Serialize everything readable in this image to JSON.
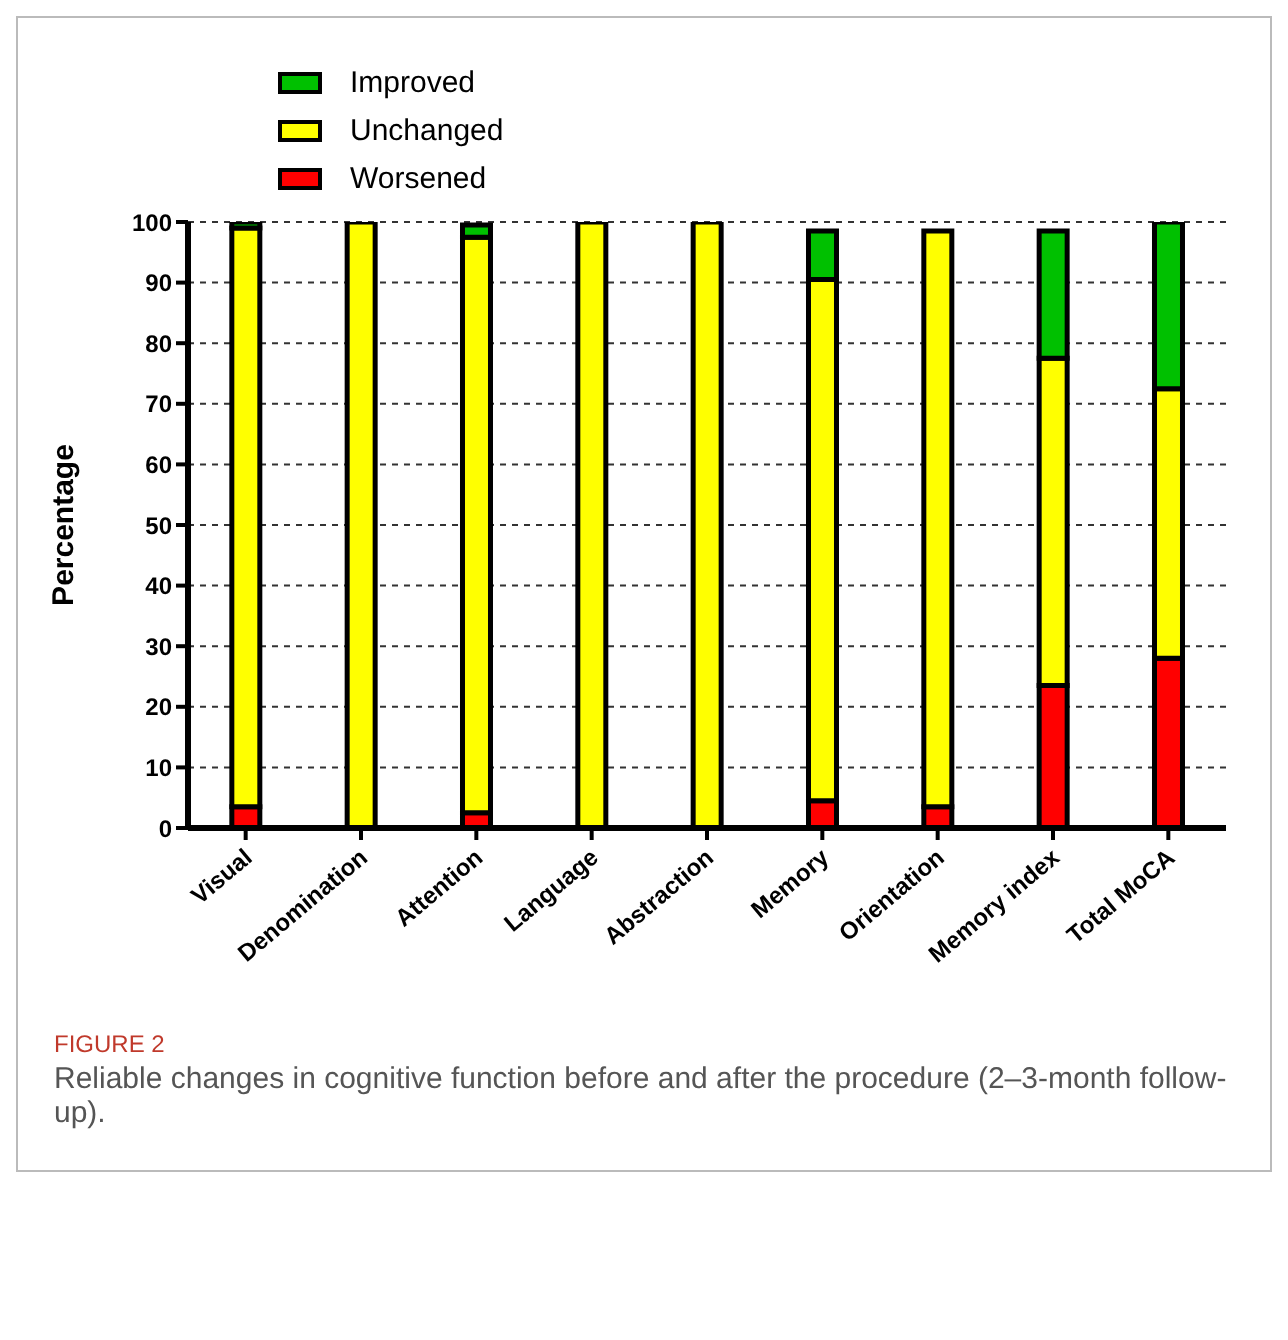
{
  "chart_data": {
    "type": "bar",
    "stacked": true,
    "ylabel": "Percentage",
    "categories": [
      "Visual",
      "Denomination",
      "Attention",
      "Language",
      "Abstraction",
      "Memory",
      "Orientation",
      "Memory index",
      "Total MoCA"
    ],
    "series": [
      {
        "name": "Worsened",
        "color": "#ff0000",
        "values": [
          3.5,
          0,
          2.5,
          0,
          0,
          4.5,
          3.5,
          23.5,
          28
        ]
      },
      {
        "name": "Unchanged",
        "color": "#ffff00",
        "values": [
          95.5,
          100,
          95,
          100,
          100,
          86,
          95,
          54,
          44.5
        ]
      },
      {
        "name": "Improved",
        "color": "#00c000",
        "values": [
          1,
          0,
          2,
          0,
          0,
          8,
          0,
          21,
          27.5
        ]
      }
    ],
    "ylim": [
      0,
      100
    ],
    "yticks": [
      0,
      10,
      20,
      30,
      40,
      50,
      60,
      70,
      80,
      90,
      100
    ],
    "grid": "y",
    "legend": "top left",
    "annotations": [
      "FIGURE 2",
      "Reliable changes in cognitive function before and after the procedure (2–3-month follow-up)."
    ]
  }
}
